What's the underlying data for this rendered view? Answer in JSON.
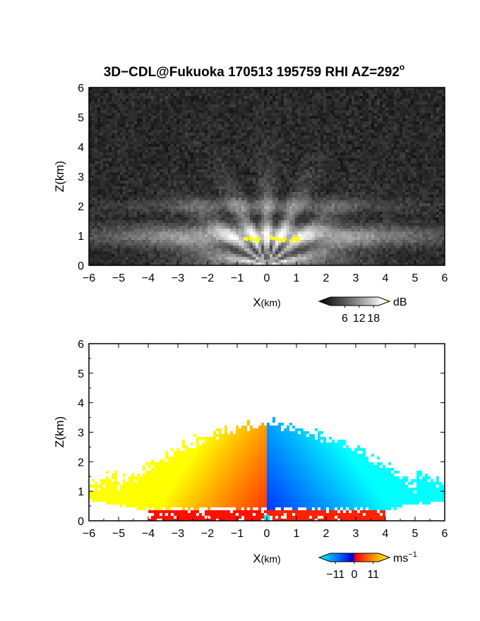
{
  "title_main": "3D−CDL@Fukuoka 170513 195759 RHI AZ=292",
  "title_sup": "o",
  "chart_data": [
    {
      "type": "heatmap",
      "quantity": "reflectivity",
      "xlabel_main": "X",
      "xlabel_unit": "(km)",
      "ylabel": "Z(km)",
      "xlim": [
        -6,
        6
      ],
      "ylim": [
        0,
        6
      ],
      "x_ticks": [
        -6,
        -5,
        -4,
        -3,
        -2,
        -1,
        0,
        1,
        2,
        3,
        4,
        5,
        6
      ],
      "y_ticks": [
        0,
        1,
        2,
        3,
        4,
        5,
        6
      ],
      "x_tick_labels": [
        "−6",
        "−5",
        "−4",
        "−3",
        "−2",
        "−1",
        "0",
        "1",
        "2",
        "3",
        "4",
        "5",
        "6"
      ],
      "y_tick_labels": [
        "0",
        "1",
        "2",
        "3",
        "4",
        "5",
        "6"
      ],
      "colorbar": {
        "unit": "dB",
        "unit_sup": "",
        "range": [
          0,
          20
        ],
        "ticks": [
          6,
          12,
          18
        ],
        "tick_labels": [
          "6",
          "12",
          "18"
        ],
        "colors": [
          "#000000",
          "#333333",
          "#666666",
          "#999999",
          "#cccccc",
          "#ffffff",
          "#ffff00"
        ]
      }
    },
    {
      "type": "heatmap",
      "quantity": "doppler_velocity",
      "xlabel_main": "X",
      "xlabel_unit": "(km)",
      "ylabel": "Z(km)",
      "xlim": [
        -6,
        6
      ],
      "ylim": [
        0,
        6
      ],
      "x_ticks": [
        -6,
        -5,
        -4,
        -3,
        -2,
        -1,
        0,
        1,
        2,
        3,
        4,
        5,
        6
      ],
      "y_ticks": [
        0,
        1,
        2,
        3,
        4,
        5,
        6
      ],
      "x_tick_labels": [
        "−6",
        "−5",
        "−4",
        "−3",
        "−2",
        "−1",
        "0",
        "1",
        "2",
        "3",
        "4",
        "5",
        "6"
      ],
      "y_tick_labels": [
        "0",
        "1",
        "2",
        "3",
        "4",
        "5",
        "6"
      ],
      "colorbar": {
        "unit": "ms",
        "unit_sup": "−1",
        "range": [
          -14,
          14
        ],
        "ticks": [
          -11,
          0,
          11
        ],
        "tick_labels": [
          "−11",
          "0",
          "11"
        ],
        "colors": [
          "#00ffff",
          "#0077ff",
          "#0000cc",
          "#ff0000",
          "#ff8800",
          "#ffff00"
        ]
      }
    }
  ]
}
